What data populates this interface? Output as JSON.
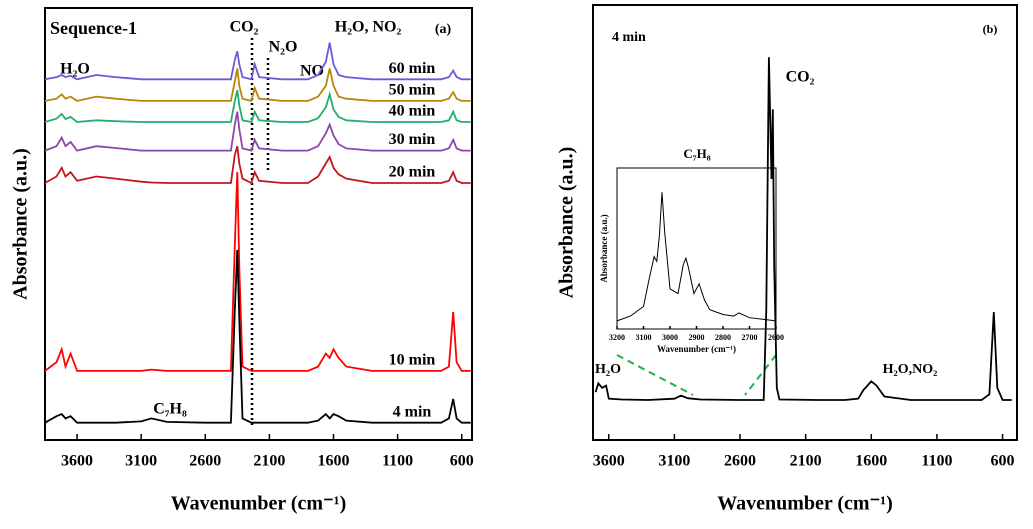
{
  "chart_data": [
    {
      "type": "line",
      "xlabel": "Wavenumber (cm⁻¹)",
      "ylabel": "Absorbance (a.u.)",
      "annotations": [
        "Sequence-1",
        "CO₂",
        "N₂O",
        "NO",
        "H₂O, NO₂",
        "(a)",
        "H₂O",
        "C₇H₈"
      ],
      "xlim": [
        3850,
        520
      ],
      "ylim": [
        0,
        100
      ],
      "xticks": [
        3600,
        3100,
        2600,
        2100,
        1600,
        1100,
        600
      ],
      "x": [
        3850,
        3760,
        3720,
        3690,
        3650,
        3600,
        3450,
        3300,
        3100,
        3020,
        2900,
        2600,
        2400,
        2370,
        2350,
        2335,
        2310,
        2240,
        2215,
        2180,
        2000,
        1800,
        1720,
        1660,
        1630,
        1600,
        1560,
        1500,
        1300,
        1000,
        760,
        700,
        667,
        640,
        600,
        530
      ],
      "series": [
        {
          "name": "60 min",
          "color": "#6b5bd6",
          "values": [
            83.5,
            84,
            84.5,
            84,
            84.3,
            83.5,
            84.5,
            84,
            83.5,
            83.5,
            83.5,
            83.5,
            83.5,
            88,
            90,
            87,
            84,
            83.5,
            87,
            84,
            83.5,
            83.5,
            84.5,
            87.5,
            92,
            87,
            84.5,
            84,
            83.5,
            83.5,
            83.5,
            84,
            85.5,
            84,
            83.5,
            83.5
          ]
        },
        {
          "name": "50 min",
          "color": "#b8860b",
          "values": [
            78.5,
            79,
            80,
            79,
            79.5,
            78.5,
            79.5,
            79,
            78.5,
            78.5,
            78.5,
            78.5,
            78.5,
            83,
            86,
            82,
            79,
            78.5,
            81.5,
            79,
            78.5,
            78.5,
            79.5,
            82,
            86,
            82,
            79.5,
            79,
            78.5,
            78.5,
            78.5,
            79,
            80.5,
            79,
            78.5,
            78.5
          ]
        },
        {
          "name": "40 min",
          "color": "#21b06b",
          "values": [
            73.6,
            74.4,
            75.5,
            74.3,
            74.8,
            73.6,
            74,
            73.8,
            73.6,
            73.6,
            73.6,
            73.6,
            73.6,
            78.5,
            81,
            77.5,
            74,
            73.6,
            76,
            74,
            73.6,
            73.6,
            74.5,
            77,
            80,
            76.5,
            74.8,
            74,
            73.6,
            73.6,
            73.6,
            74,
            76,
            74,
            73.6,
            73.6
          ]
        },
        {
          "name": "30 min",
          "color": "#8e44ad",
          "values": [
            67,
            68,
            70,
            68,
            69,
            67,
            68,
            67.6,
            67,
            67,
            67,
            67,
            67,
            73,
            76,
            72,
            67.5,
            67,
            69.5,
            67.5,
            67,
            67,
            68,
            71,
            73,
            70.5,
            68.5,
            67.5,
            67,
            67,
            67,
            67.5,
            69.5,
            67.5,
            67,
            67
          ]
        },
        {
          "name": "20 min",
          "color": "#c0171b",
          "values": [
            59.5,
            61,
            63,
            61,
            62,
            60,
            61,
            60.5,
            59.8,
            59.6,
            59.5,
            59.5,
            59.5,
            66,
            68,
            64,
            60.5,
            59.5,
            62,
            60,
            59.5,
            59.5,
            61,
            64,
            65.5,
            63,
            61.5,
            60.5,
            59.5,
            59.5,
            59.5,
            60,
            62,
            60,
            59.5,
            59.5
          ]
        },
        {
          "name": "10 min",
          "color": "#ff0000",
          "values": [
            16,
            18,
            21,
            17,
            20,
            16,
            16,
            16,
            16,
            16.3,
            16,
            16,
            16,
            45,
            62,
            40,
            17,
            16,
            16,
            16,
            16,
            16,
            17,
            20,
            19,
            21,
            19,
            17,
            16,
            16,
            16,
            17,
            29.6,
            18,
            16,
            16
          ]
        },
        {
          "name": "4 min",
          "color": "#000000",
          "values": [
            4,
            5.5,
            6,
            5,
            5.5,
            4,
            4,
            4,
            4.3,
            5,
            4.2,
            4,
            4,
            30,
            44,
            28,
            5,
            4,
            4,
            4,
            4,
            4,
            4.5,
            6,
            5,
            6,
            5.5,
            4.5,
            4,
            4,
            4,
            5,
            9.5,
            5,
            4,
            4
          ]
        }
      ]
    },
    {
      "type": "line",
      "xlabel": "Wavenumber (cm⁻¹)",
      "ylabel": "Absorbance (a.u.)",
      "annotations": [
        "(b)",
        "CO₂",
        "H₂O",
        "H₂O,NO₂"
      ],
      "xlim": [
        3720,
        490
      ],
      "ylim": [
        0,
        100
      ],
      "xticks": [
        3600,
        3100,
        2600,
        2100,
        1600,
        1100,
        600
      ],
      "x": [
        3700,
        3680,
        3650,
        3620,
        3600,
        3500,
        3300,
        3100,
        3050,
        3000,
        2900,
        2600,
        2420,
        2400,
        2380,
        2360,
        2350,
        2340,
        2320,
        2300,
        2000,
        1800,
        1700,
        1660,
        1630,
        1600,
        1560,
        1500,
        1300,
        1000,
        760,
        700,
        667,
        640,
        600,
        530
      ],
      "series": [
        {
          "name": "4 min",
          "color": "#000000",
          "values": [
            11,
            13,
            12,
            12.5,
            9.5,
            9.3,
            9.2,
            9.5,
            10.2,
            9.6,
            9.3,
            9.2,
            9.2,
            30,
            88,
            60,
            76,
            40,
            12,
            9.3,
            9.2,
            9.2,
            9.5,
            11.5,
            12.5,
            13.5,
            12.5,
            10,
            9.2,
            9.2,
            9.2,
            10.5,
            29.4,
            12,
            9.2,
            9.2
          ]
        }
      ]
    },
    {
      "type": "line",
      "title": "C₇H₈",
      "xlabel": "Wavenumber (cm⁻¹)",
      "ylabel": "Absorbance (a.u.)",
      "xlim": [
        3200,
        2600
      ],
      "ylim": [
        0,
        100
      ],
      "xticks": [
        3200,
        3100,
        3000,
        2900,
        2800,
        2700,
        2600
      ],
      "x": [
        3200,
        3150,
        3100,
        3080,
        3060,
        3050,
        3040,
        3030,
        3020,
        3000,
        2970,
        2950,
        2940,
        2930,
        2910,
        2890,
        2870,
        2850,
        2800,
        2760,
        2740,
        2700,
        2650,
        2600
      ],
      "series": [
        {
          "color": "#000000",
          "values": [
            5,
            8,
            14,
            30,
            45,
            42,
            58,
            85,
            60,
            25,
            22,
            40,
            44,
            38,
            22,
            28,
            18,
            12,
            9,
            8,
            10,
            7,
            6,
            5
          ]
        }
      ]
    }
  ]
}
